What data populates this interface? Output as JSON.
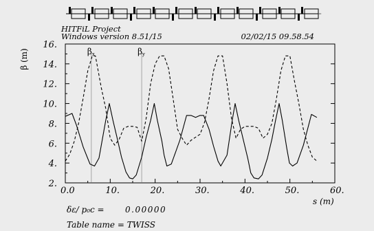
{
  "header": {
    "project": "HITFiL Project",
    "version": "Windows version 8.51/15",
    "datetime": "02/02/15  09.58.54"
  },
  "chart_data": {
    "type": "line",
    "xlabel": "s (m)",
    "ylabel": "β (m)",
    "xlim": [
      0,
      60
    ],
    "ylim": [
      2,
      16
    ],
    "x_ticks": [
      "0.0",
      "10.",
      "20.",
      "30.",
      "40.",
      "50.",
      "60."
    ],
    "y_ticks": [
      "2.",
      "4.",
      "6.",
      "8.",
      "10.",
      "12.",
      "14.",
      "16."
    ],
    "markers": [
      {
        "label": "βx",
        "s": 5.8
      },
      {
        "label": "βy",
        "s": 17.0
      }
    ],
    "series": [
      {
        "name": "βx",
        "style": "solid",
        "points": [
          [
            0,
            8.7
          ],
          [
            1.5,
            9.0
          ],
          [
            2.5,
            7.8
          ],
          [
            4,
            5.6
          ],
          [
            5.5,
            3.9
          ],
          [
            6.5,
            3.7
          ],
          [
            7.5,
            4.5
          ],
          [
            9,
            8.3
          ],
          [
            9.8,
            10.0
          ],
          [
            10.6,
            8.3
          ],
          [
            11.5,
            6.6
          ],
          [
            12.5,
            4.6
          ],
          [
            13.5,
            3.1
          ],
          [
            14.3,
            2.5
          ],
          [
            15,
            2.4
          ],
          [
            15.8,
            2.8
          ],
          [
            17,
            4.6
          ],
          [
            18,
            6.6
          ],
          [
            19,
            8.3
          ],
          [
            19.8,
            10.0
          ],
          [
            20.5,
            8.3
          ],
          [
            21.5,
            6.2
          ],
          [
            22,
            4.8
          ],
          [
            22.6,
            3.7
          ],
          [
            23.6,
            3.9
          ],
          [
            25.5,
            6.3
          ],
          [
            27,
            8.8
          ],
          [
            28,
            8.8
          ],
          [
            29,
            8.6
          ],
          [
            30,
            8.8
          ],
          [
            30.8,
            8.8
          ],
          [
            32,
            7.4
          ],
          [
            33,
            5.7
          ],
          [
            34,
            4.2
          ],
          [
            34.6,
            3.7
          ],
          [
            36,
            4.8
          ],
          [
            37.2,
            8.4
          ],
          [
            37.8,
            10.0
          ],
          [
            38.6,
            8.3
          ],
          [
            39.6,
            6.4
          ],
          [
            40.6,
            4.5
          ],
          [
            41.3,
            3.0
          ],
          [
            42,
            2.5
          ],
          [
            43,
            2.4
          ],
          [
            43.8,
            2.8
          ],
          [
            45,
            4.5
          ],
          [
            46,
            6.4
          ],
          [
            46.8,
            8.3
          ],
          [
            47.6,
            10.0
          ],
          [
            48.3,
            8.3
          ],
          [
            49.3,
            5.5
          ],
          [
            49.9,
            4.0
          ],
          [
            50.6,
            3.7
          ],
          [
            51.6,
            4.0
          ],
          [
            53,
            5.8
          ],
          [
            54.8,
            8.9
          ],
          [
            56,
            8.6
          ]
        ]
      },
      {
        "name": "βy",
        "style": "dashed",
        "points": [
          [
            0,
            4.2
          ],
          [
            1,
            4.9
          ],
          [
            2,
            6.2
          ],
          [
            3,
            8.1
          ],
          [
            4,
            10.6
          ],
          [
            5,
            13.3
          ],
          [
            6,
            14.8
          ],
          [
            6.7,
            14.8
          ],
          [
            8,
            11.6
          ],
          [
            9,
            9.5
          ],
          [
            10,
            6.5
          ],
          [
            11,
            5.8
          ],
          [
            12,
            6.4
          ],
          [
            13,
            7.5
          ],
          [
            14,
            7.7
          ],
          [
            15,
            7.7
          ],
          [
            16,
            7.6
          ],
          [
            17,
            6.2
          ],
          [
            18,
            8.5
          ],
          [
            19,
            12.0
          ],
          [
            20,
            14.0
          ],
          [
            21,
            14.8
          ],
          [
            22,
            14.8
          ],
          [
            23,
            13.5
          ],
          [
            24,
            10.5
          ],
          [
            25,
            7.4
          ],
          [
            26,
            6.5
          ],
          [
            27,
            5.8
          ],
          [
            28,
            6.3
          ],
          [
            29,
            6.6
          ],
          [
            30,
            6.9
          ],
          [
            31,
            8.1
          ],
          [
            32,
            10.5
          ],
          [
            33,
            13.3
          ],
          [
            34,
            14.8
          ],
          [
            35,
            14.8
          ],
          [
            36,
            12.0
          ],
          [
            37,
            8.5
          ],
          [
            38,
            6.5
          ],
          [
            39,
            7.4
          ],
          [
            40,
            7.7
          ],
          [
            41,
            7.7
          ],
          [
            42,
            7.7
          ],
          [
            43,
            7.5
          ],
          [
            44,
            6.5
          ],
          [
            45,
            6.9
          ],
          [
            46,
            8.0
          ],
          [
            47,
            10.5
          ],
          [
            48,
            13.3
          ],
          [
            49,
            14.8
          ],
          [
            50,
            14.8
          ],
          [
            51,
            12.3
          ],
          [
            52,
            10.0
          ],
          [
            53,
            7.4
          ],
          [
            54,
            5.8
          ],
          [
            55,
            4.6
          ],
          [
            56,
            4.2
          ]
        ]
      }
    ]
  },
  "footer": {
    "momentum_label": "δε/ p₀c  =",
    "momentum_value": "0.00000",
    "table_label": "Table name = TWISS"
  }
}
